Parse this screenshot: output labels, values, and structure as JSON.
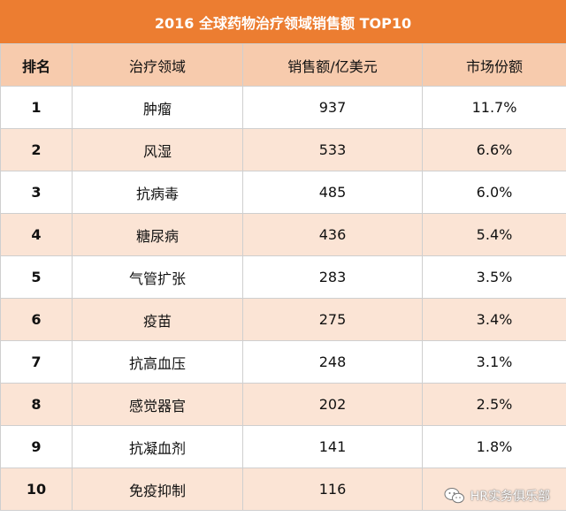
{
  "title": "2016 全球药物治疗领域销售额 TOP10",
  "columns": [
    "排名",
    "治疗领域",
    "销售额/亿美元",
    "市场份额"
  ],
  "rows": [
    {
      "rank": "1",
      "area": "肿瘤",
      "sales": "937",
      "share": "11.7%"
    },
    {
      "rank": "2",
      "area": "风湿",
      "sales": "533",
      "share": "6.6%"
    },
    {
      "rank": "3",
      "area": "抗病毒",
      "sales": "485",
      "share": "6.0%"
    },
    {
      "rank": "4",
      "area": "糖尿病",
      "sales": "436",
      "share": "5.4%"
    },
    {
      "rank": "5",
      "area": "气管扩张",
      "sales": "283",
      "share": "3.5%"
    },
    {
      "rank": "6",
      "area": "疫苗",
      "sales": "275",
      "share": "3.4%"
    },
    {
      "rank": "7",
      "area": "抗高血压",
      "sales": "248",
      "share": "3.1%"
    },
    {
      "rank": "8",
      "area": "感觉器官",
      "sales": "202",
      "share": "2.5%"
    },
    {
      "rank": "9",
      "area": "抗凝血剂",
      "sales": "141",
      "share": "1.8%"
    },
    {
      "rank": "10",
      "area": "免疫抑制",
      "sales": "116",
      "share": ""
    }
  ],
  "watermark": {
    "text": "HR实务俱乐部",
    "icon": "wechat-icon"
  },
  "colors": {
    "header": "#ec7d31",
    "column_header": "#f7cbad",
    "stripe": "#fbe4d5"
  }
}
